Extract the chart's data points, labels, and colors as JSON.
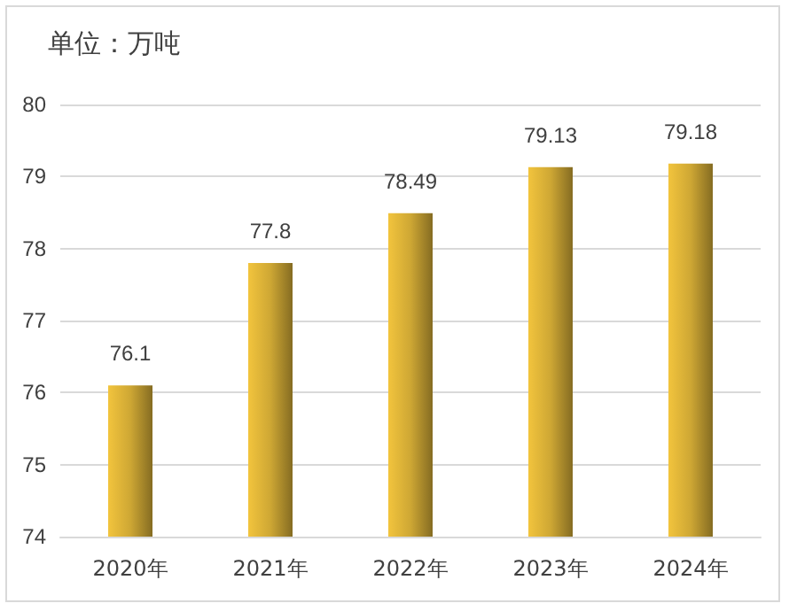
{
  "chart_data": {
    "type": "bar",
    "title": "单位：万吨",
    "categories": [
      "2020年",
      "2021年",
      "2022年",
      "2023年",
      "2024年"
    ],
    "values": [
      76.1,
      77.8,
      78.49,
      79.13,
      79.18
    ],
    "color": "#f2c43d",
    "ylim": [
      74,
      80
    ],
    "yticks": [
      74,
      75,
      76,
      77,
      78,
      79,
      80
    ],
    "grid": "y",
    "data_labels": true
  }
}
